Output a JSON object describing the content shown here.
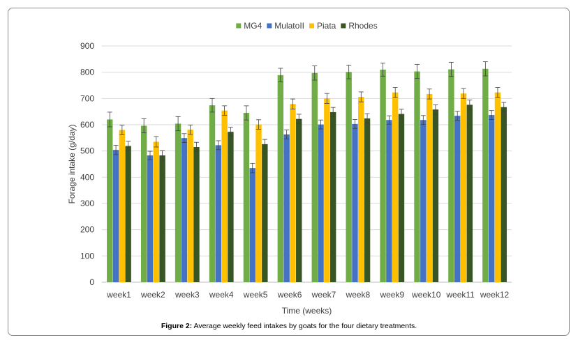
{
  "chart_data": {
    "type": "bar",
    "title": "",
    "xlabel": "Time (weeks)",
    "ylabel": "Forage intake (g/day)",
    "ylim": [
      0,
      900
    ],
    "yticks": [
      0,
      100,
      200,
      300,
      400,
      500,
      600,
      700,
      800,
      900
    ],
    "grid": true,
    "legend_position": "top",
    "categories": [
      "week1",
      "week2",
      "week3",
      "week4",
      "week5",
      "week6",
      "week7",
      "week8",
      "week9",
      "week10",
      "week11",
      "week12"
    ],
    "series": [
      {
        "name": "MG4",
        "color": "#70ad47",
        "values": [
          620,
          596,
          604,
          674,
          645,
          789,
          797,
          801,
          810,
          803,
          811,
          813
        ],
        "errors": [
          28,
          27,
          27,
          26,
          27,
          26,
          27,
          26,
          25,
          27,
          27,
          27
        ]
      },
      {
        "name": "MulatoII",
        "color": "#4472c4",
        "values": [
          504,
          483,
          549,
          522,
          435,
          563,
          601,
          603,
          618,
          618,
          634,
          637
        ],
        "errors": [
          18,
          16,
          17,
          17,
          18,
          17,
          17,
          17,
          16,
          17,
          17,
          17
        ]
      },
      {
        "name": "Piata",
        "color": "#ffc000",
        "values": [
          580,
          535,
          581,
          654,
          601,
          679,
          700,
          706,
          723,
          717,
          719,
          723
        ],
        "errors": [
          18,
          20,
          18,
          18,
          18,
          19,
          19,
          19,
          19,
          19,
          19,
          19
        ]
      },
      {
        "name": "Rhodes",
        "color": "#375623",
        "values": [
          519,
          483,
          515,
          573,
          526,
          622,
          648,
          624,
          641,
          658,
          676,
          667
        ],
        "errors": [
          18,
          18,
          18,
          17,
          18,
          18,
          18,
          18,
          18,
          18,
          18,
          18
        ]
      }
    ]
  },
  "caption": {
    "label": "Figure 2:",
    "text": " Average weekly feed intakes by goats for the four dietary treatments."
  }
}
